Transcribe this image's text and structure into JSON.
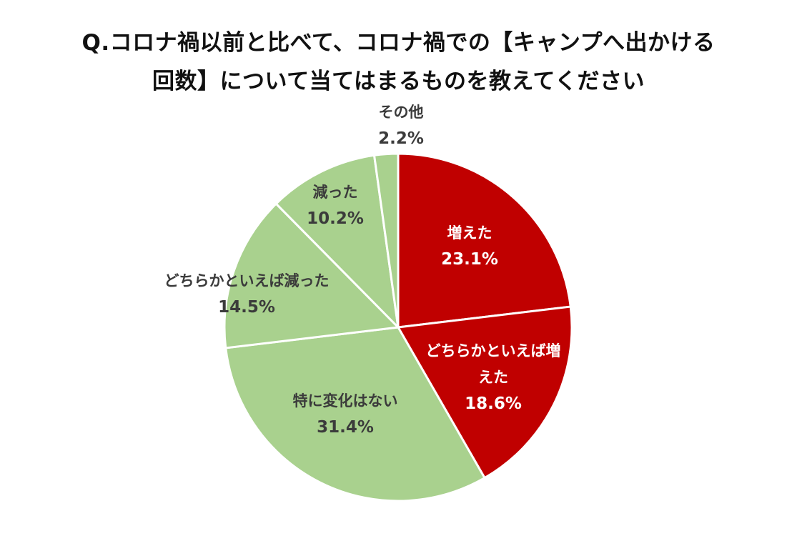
{
  "title_line1": "Q.コロナ禍以前と比べて、コロナ禍での【キャンプへ出かける",
  "title_line2": "回数】について当てはまるものを教えてください",
  "colors": {
    "red": "#c00000",
    "green": "#a9d18e",
    "dark_text": "#3b3b3b",
    "white_text": "#ffffff"
  },
  "chart_data": {
    "type": "pie",
    "slices": [
      {
        "label": "増えた",
        "label_lines": [
          "増えた"
        ],
        "value": 23.1,
        "display": "23.1%",
        "color": "#c00000",
        "text_color": "#ffffff"
      },
      {
        "label": "どちらかといえば増えた",
        "label_lines": [
          "どちらかといえば増",
          "えた"
        ],
        "value": 18.6,
        "display": "18.6%",
        "color": "#c00000",
        "text_color": "#ffffff"
      },
      {
        "label": "特に変化はない",
        "label_lines": [
          "特に変化はない"
        ],
        "value": 31.4,
        "display": "31.4%",
        "color": "#a9d18e",
        "text_color": "#3b3b3b"
      },
      {
        "label": "どちらかといえば減った",
        "label_lines": [
          "どちらかといえば減った"
        ],
        "value": 14.5,
        "display": "14.5%",
        "color": "#a9d18e",
        "text_color": "#3b3b3b"
      },
      {
        "label": "減った",
        "label_lines": [
          "減った"
        ],
        "value": 10.2,
        "display": "10.2%",
        "color": "#a9d18e",
        "text_color": "#3b3b3b"
      },
      {
        "label": "その他",
        "label_lines": [
          "その他"
        ],
        "value": 2.2,
        "display": "2.2%",
        "color": "#a9d18e",
        "text_color": "#3b3b3b"
      }
    ]
  }
}
